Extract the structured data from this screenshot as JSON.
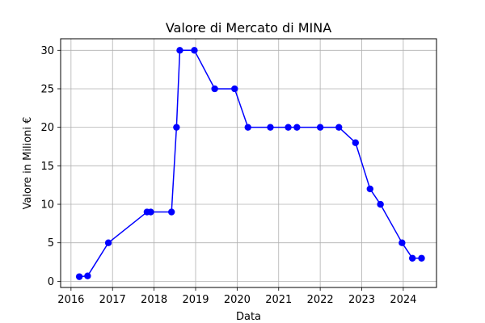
{
  "chart_data": {
    "type": "line",
    "title": "Valore di Mercato di MINA",
    "xlabel": "Data",
    "ylabel": "Valore in Milioni €",
    "x_ticks": [
      "2016",
      "2017",
      "2018",
      "2019",
      "2020",
      "2021",
      "2022",
      "2023",
      "2024"
    ],
    "y_ticks": [
      "0",
      "5",
      "10",
      "15",
      "20",
      "25",
      "30"
    ],
    "xlim": [
      2015.75,
      2024.8
    ],
    "ylim": [
      -0.8,
      31.5
    ],
    "grid": true,
    "series": [
      {
        "color": "#0000ff",
        "marker": "circle",
        "points": [
          {
            "x": 2016.2,
            "y": 0.6
          },
          {
            "x": 2016.4,
            "y": 0.7
          },
          {
            "x": 2016.9,
            "y": 5
          },
          {
            "x": 2017.83,
            "y": 9
          },
          {
            "x": 2017.92,
            "y": 9
          },
          {
            "x": 2018.42,
            "y": 9
          },
          {
            "x": 2018.54,
            "y": 20
          },
          {
            "x": 2018.62,
            "y": 30
          },
          {
            "x": 2018.97,
            "y": 30
          },
          {
            "x": 2019.46,
            "y": 25
          },
          {
            "x": 2019.94,
            "y": 25
          },
          {
            "x": 2020.26,
            "y": 20
          },
          {
            "x": 2020.8,
            "y": 20
          },
          {
            "x": 2021.23,
            "y": 20
          },
          {
            "x": 2021.44,
            "y": 20
          },
          {
            "x": 2022.0,
            "y": 20
          },
          {
            "x": 2022.45,
            "y": 20
          },
          {
            "x": 2022.85,
            "y": 18
          },
          {
            "x": 2023.2,
            "y": 12
          },
          {
            "x": 2023.45,
            "y": 10
          },
          {
            "x": 2023.97,
            "y": 5
          },
          {
            "x": 2024.22,
            "y": 3
          },
          {
            "x": 2024.44,
            "y": 3
          }
        ]
      }
    ]
  }
}
